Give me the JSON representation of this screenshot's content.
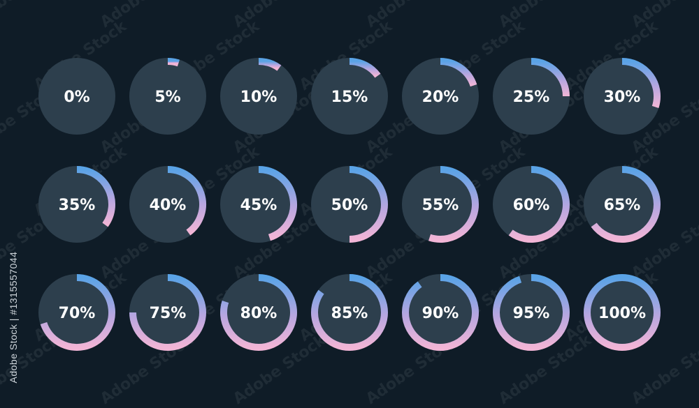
{
  "indicators": [
    "0%",
    "5%",
    "10%",
    "15%",
    "20%",
    "25%",
    "30%",
    "35%",
    "40%",
    "45%",
    "50%",
    "55%",
    "60%",
    "65%",
    "70%",
    "75%",
    "80%",
    "85%",
    "90%",
    "95%",
    "100%"
  ],
  "progress_values": [
    0,
    5,
    10,
    15,
    20,
    25,
    30,
    35,
    40,
    45,
    50,
    55,
    60,
    65,
    70,
    75,
    80,
    85,
    90,
    95,
    100
  ],
  "watermark": "Adobe Stock",
  "stock_id": "Adobe Stock | #1315557044",
  "colors": {
    "background": "#0f1c27",
    "circle_fill": "#2d3f4d",
    "gradient_start": "#5a9fe0",
    "gradient_end": "#f0b0d8",
    "text": "#ffffff"
  }
}
